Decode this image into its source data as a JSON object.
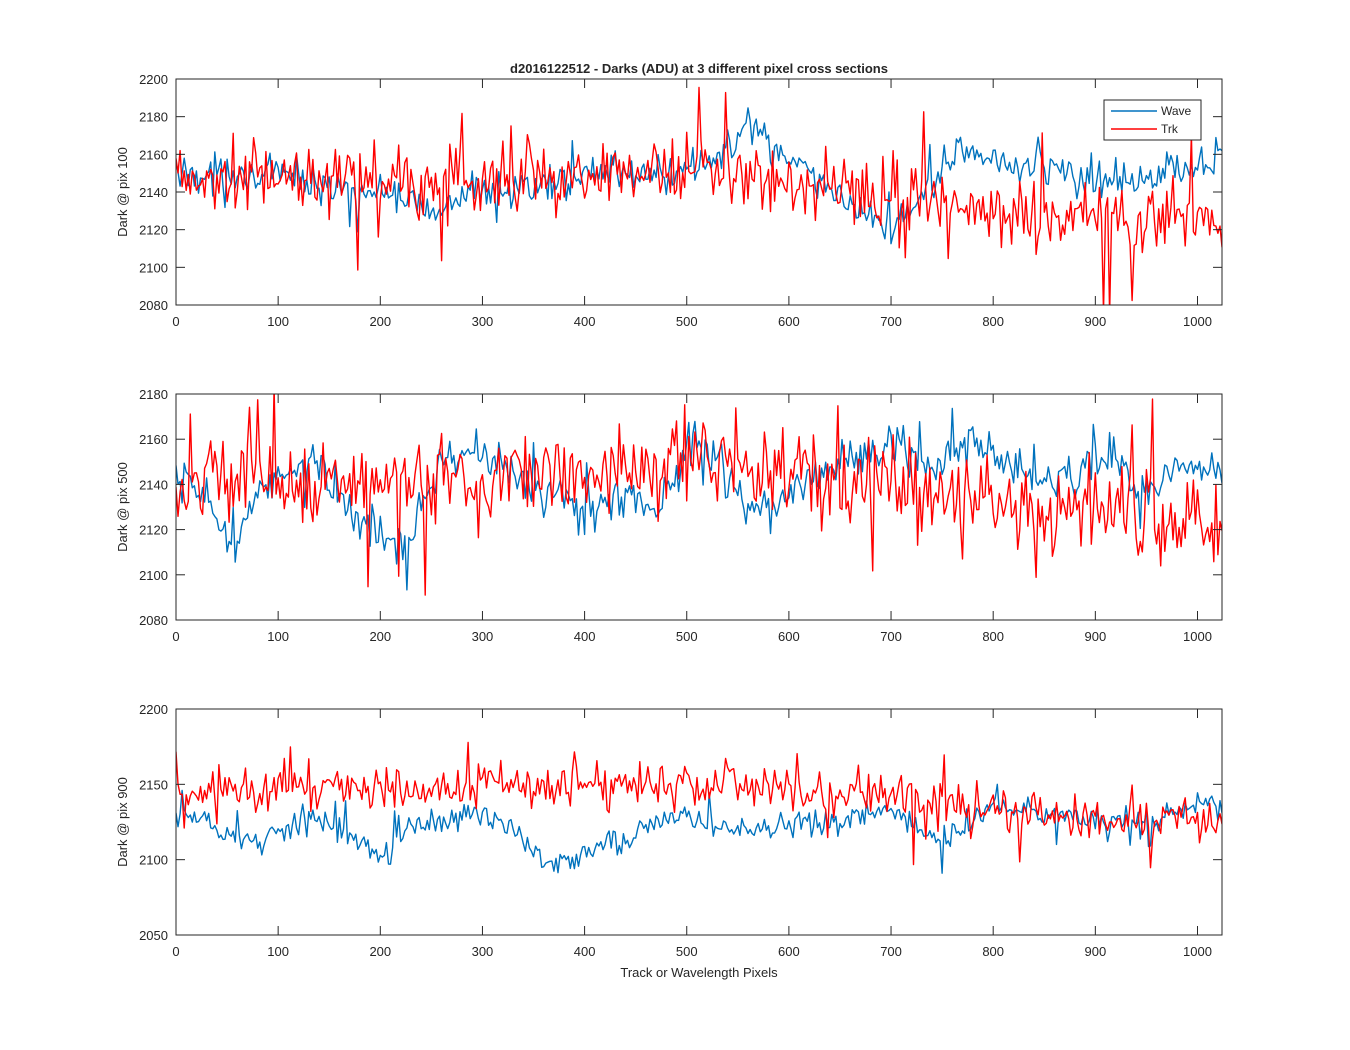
{
  "figure": {
    "title": "d2016122512 - Darks (ADU) at 3 different pixel cross sections",
    "xlabel": "Track or Wavelength Pixels"
  },
  "colors": {
    "wave": "#0072BD",
    "trk": "#FF0000",
    "axis": "#262626"
  },
  "chart_data": [
    {
      "type": "line",
      "ylabel": "Dark @ pix 100",
      "xlim": [
        0,
        1024
      ],
      "ylim": [
        2080,
        2200
      ],
      "xticks": [
        0,
        100,
        200,
        300,
        400,
        500,
        600,
        700,
        800,
        900,
        1000
      ],
      "yticks": [
        2080,
        2100,
        2120,
        2140,
        2160,
        2180,
        2200
      ],
      "legend": {
        "position": "top-right",
        "entries": [
          "Wave",
          "Trk"
        ]
      },
      "series": [
        {
          "name": "Wave",
          "color": "#0072BD",
          "baseline": [
            [
              0,
              2150
            ],
            [
              50,
              2150
            ],
            [
              100,
              2148
            ],
            [
              150,
              2143
            ],
            [
              200,
              2140
            ],
            [
              250,
              2130
            ],
            [
              300,
              2142
            ],
            [
              350,
              2140
            ],
            [
              400,
              2150
            ],
            [
              450,
              2150
            ],
            [
              500,
              2150
            ],
            [
              540,
              2160
            ],
            [
              560,
              2178
            ],
            [
              580,
              2168
            ],
            [
              600,
              2155
            ],
            [
              650,
              2138
            ],
            [
              700,
              2120
            ],
            [
              750,
              2150
            ],
            [
              770,
              2167
            ],
            [
              800,
              2155
            ],
            [
              850,
              2152
            ],
            [
              900,
              2146
            ],
            [
              950,
              2150
            ],
            [
              1000,
              2155
            ],
            [
              1024,
              2157
            ]
          ],
          "noise": 7
        },
        {
          "name": "Trk",
          "color": "#FF0000",
          "baseline": [
            [
              0,
              2145
            ],
            [
              100,
              2148
            ],
            [
              200,
              2146
            ],
            [
              300,
              2145
            ],
            [
              400,
              2148
            ],
            [
              500,
              2150
            ],
            [
              560,
              2150
            ],
            [
              600,
              2145
            ],
            [
              700,
              2140
            ],
            [
              800,
              2130
            ],
            [
              900,
              2128
            ],
            [
              1024,
              2125
            ]
          ],
          "noise": 14
        }
      ]
    },
    {
      "type": "line",
      "ylabel": "Dark @ pix 500",
      "xlim": [
        0,
        1024
      ],
      "ylim": [
        2080,
        2180
      ],
      "xticks": [
        0,
        100,
        200,
        300,
        400,
        500,
        600,
        700,
        800,
        900,
        1000
      ],
      "yticks": [
        2080,
        2100,
        2120,
        2140,
        2160,
        2180
      ],
      "series": [
        {
          "name": "Wave",
          "color": "#0072BD",
          "baseline": [
            [
              0,
              2140
            ],
            [
              30,
              2135
            ],
            [
              50,
              2115
            ],
            [
              70,
              2125
            ],
            [
              100,
              2145
            ],
            [
              130,
              2152
            ],
            [
              160,
              2135
            ],
            [
              200,
              2115
            ],
            [
              220,
              2115
            ],
            [
              260,
              2152
            ],
            [
              300,
              2152
            ],
            [
              350,
              2140
            ],
            [
              400,
              2128
            ],
            [
              450,
              2135
            ],
            [
              470,
              2125
            ],
            [
              500,
              2155
            ],
            [
              520,
              2157
            ],
            [
              560,
              2130
            ],
            [
              600,
              2135
            ],
            [
              650,
              2150
            ],
            [
              700,
              2155
            ],
            [
              750,
              2150
            ],
            [
              780,
              2160
            ],
            [
              800,
              2150
            ],
            [
              850,
              2140
            ],
            [
              900,
              2148
            ],
            [
              920,
              2150
            ],
            [
              950,
              2135
            ],
            [
              1000,
              2150
            ],
            [
              1024,
              2145
            ]
          ],
          "noise": 7
        },
        {
          "name": "Trk",
          "color": "#FF0000",
          "baseline": [
            [
              0,
              2140
            ],
            [
              100,
              2142
            ],
            [
              200,
              2140
            ],
            [
              300,
              2143
            ],
            [
              400,
              2145
            ],
            [
              500,
              2152
            ],
            [
              600,
              2145
            ],
            [
              700,
              2140
            ],
            [
              800,
              2135
            ],
            [
              900,
              2130
            ],
            [
              1024,
              2125
            ]
          ],
          "noise": 14
        }
      ]
    },
    {
      "type": "line",
      "ylabel": "Dark @ pix 900",
      "xlim": [
        0,
        1024
      ],
      "ylim": [
        2050,
        2200
      ],
      "xticks": [
        0,
        100,
        200,
        300,
        400,
        500,
        600,
        700,
        800,
        900,
        1000
      ],
      "yticks": [
        2050,
        2100,
        2150,
        2200
      ],
      "series": [
        {
          "name": "Wave",
          "color": "#0072BD",
          "baseline": [
            [
              0,
              2130
            ],
            [
              30,
              2125
            ],
            [
              50,
              2115
            ],
            [
              80,
              2108
            ],
            [
              100,
              2120
            ],
            [
              130,
              2128
            ],
            [
              160,
              2122
            ],
            [
              200,
              2100
            ],
            [
              230,
              2122
            ],
            [
              270,
              2125
            ],
            [
              300,
              2132
            ],
            [
              330,
              2120
            ],
            [
              370,
              2095
            ],
            [
              400,
              2105
            ],
            [
              420,
              2115
            ],
            [
              440,
              2110
            ],
            [
              460,
              2122
            ],
            [
              500,
              2130
            ],
            [
              550,
              2118
            ],
            [
              580,
              2120
            ],
            [
              600,
              2125
            ],
            [
              650,
              2125
            ],
            [
              700,
              2132
            ],
            [
              750,
              2112
            ],
            [
              780,
              2125
            ],
            [
              800,
              2138
            ],
            [
              850,
              2130
            ],
            [
              900,
              2128
            ],
            [
              950,
              2122
            ],
            [
              1000,
              2138
            ],
            [
              1024,
              2135
            ]
          ],
          "noise": 6
        },
        {
          "name": "Trk",
          "color": "#FF0000",
          "baseline": [
            [
              0,
              2143
            ],
            [
              100,
              2148
            ],
            [
              200,
              2148
            ],
            [
              300,
              2150
            ],
            [
              400,
              2148
            ],
            [
              500,
              2150
            ],
            [
              600,
              2145
            ],
            [
              700,
              2142
            ],
            [
              800,
              2135
            ],
            [
              900,
              2127
            ],
            [
              1024,
              2123
            ]
          ],
          "noise": 11
        }
      ]
    }
  ]
}
